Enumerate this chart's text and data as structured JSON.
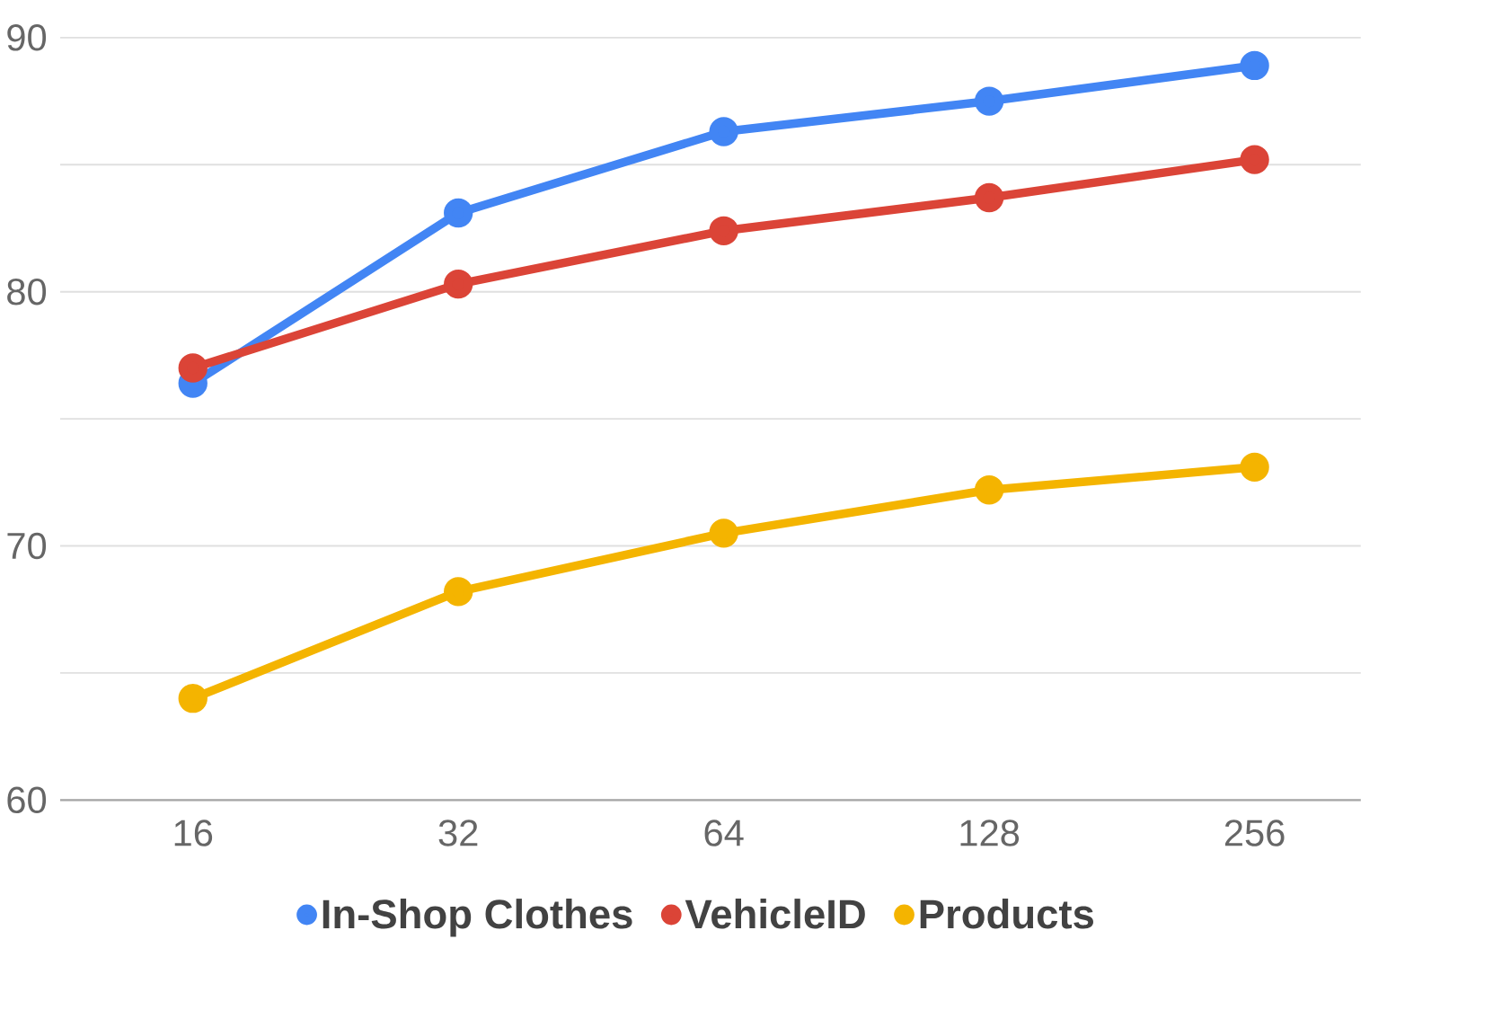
{
  "chart_data": {
    "type": "line",
    "categories": [
      "16",
      "32",
      "64",
      "128",
      "256"
    ],
    "series": [
      {
        "name": "In-Shop Clothes",
        "color": "#4285f4",
        "values": [
          76.4,
          83.1,
          86.3,
          87.5,
          88.9
        ]
      },
      {
        "name": "VehicleID",
        "color": "#db4437",
        "values": [
          77.0,
          80.3,
          82.4,
          83.7,
          85.2
        ]
      },
      {
        "name": "Products",
        "color": "#f4b400",
        "values": [
          64.0,
          68.2,
          70.5,
          72.2,
          73.1
        ]
      }
    ],
    "ylim": [
      60,
      90
    ],
    "yticks": [
      60,
      {
        "value": 65,
        "label": null
      },
      70,
      {
        "value": 75,
        "label": null
      },
      80,
      {
        "value": 85,
        "label": null
      },
      90
    ],
    "grid": "y",
    "legend": "bottom",
    "marker": "circle",
    "line_style": "solid"
  }
}
